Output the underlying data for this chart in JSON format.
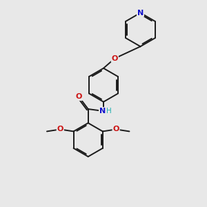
{
  "background_color": "#e8e8e8",
  "bond_color": "#1a1a1a",
  "atom_colors": {
    "N": "#1414cc",
    "O": "#cc1414",
    "H": "#20b0b0"
  },
  "figsize": [
    3.0,
    3.0
  ],
  "dpi": 100
}
